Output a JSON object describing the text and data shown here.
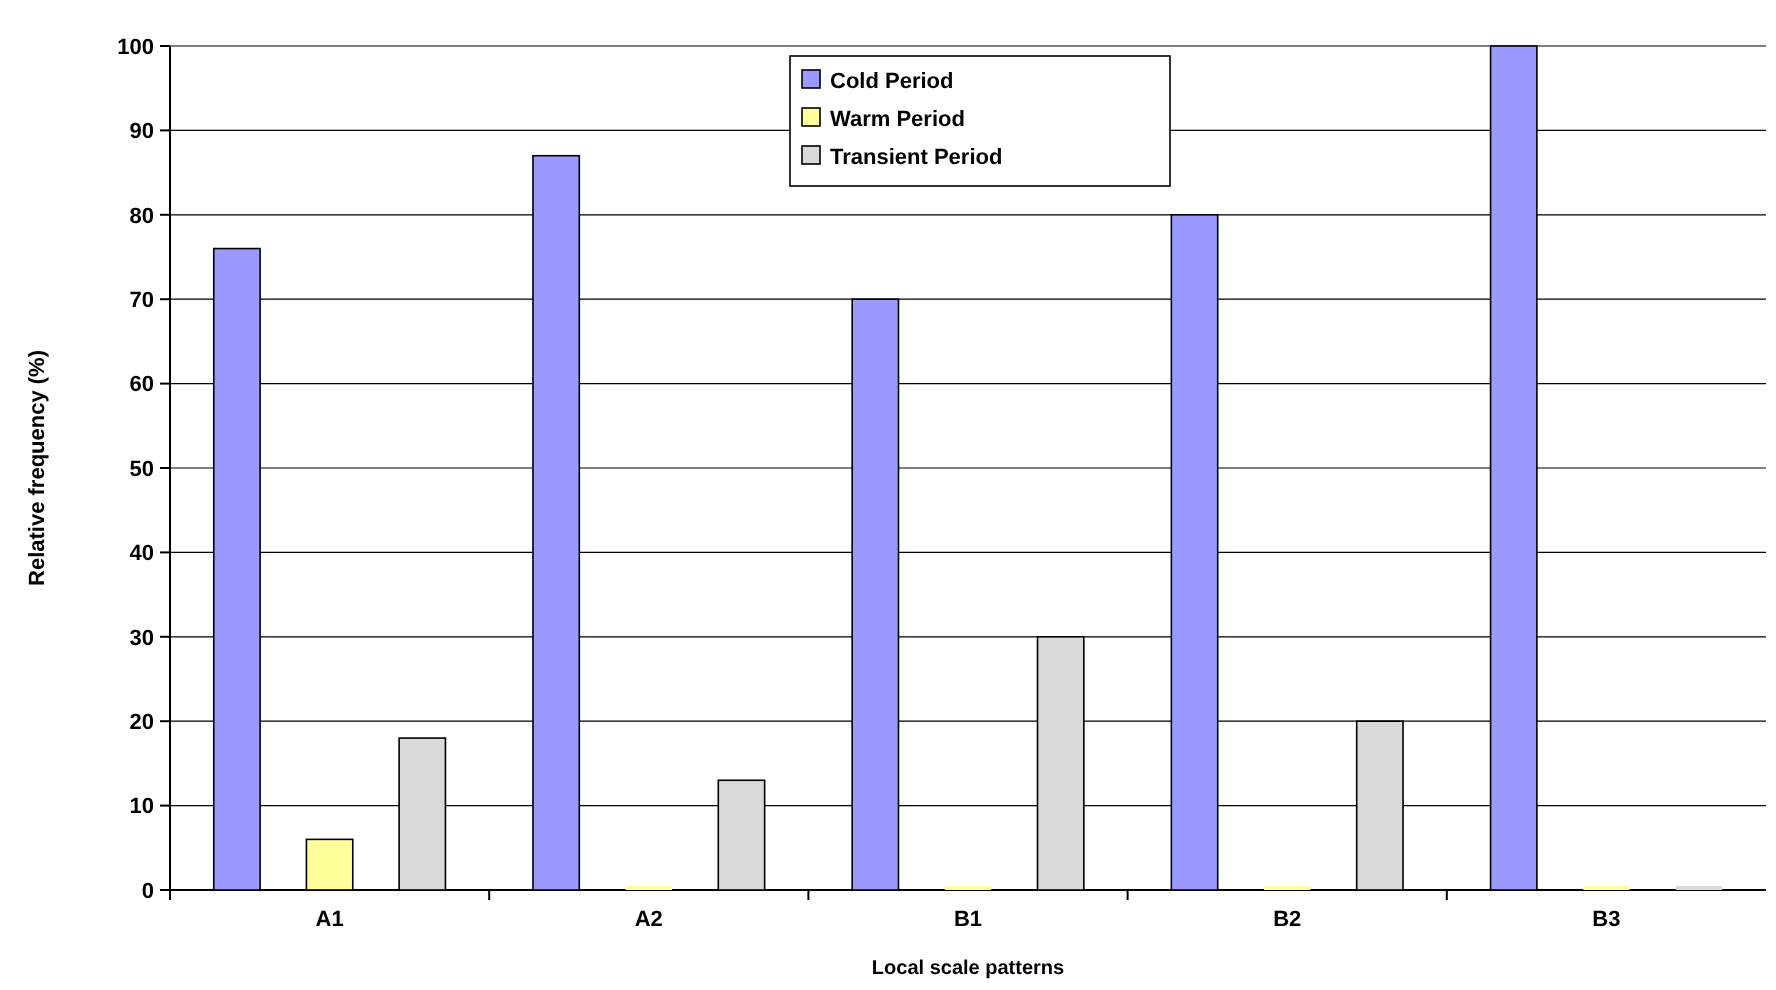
{
  "chart_data": {
    "type": "bar",
    "xlabel": "Local scale patterns",
    "ylabel": "Relative frequency (%)",
    "categories": [
      "A1",
      "A2",
      "B1",
      "B2",
      "B3"
    ],
    "series": [
      {
        "name": "Cold Period",
        "color": "#9999ff",
        "values": [
          76,
          87,
          70,
          80,
          100
        ]
      },
      {
        "name": "Warm Period",
        "color": "#ffff99",
        "values": [
          6,
          0,
          0,
          0,
          0
        ]
      },
      {
        "name": "Transient Period",
        "color": "#d9d9d9",
        "values": [
          18,
          13,
          30,
          20,
          0
        ]
      }
    ],
    "ylim": [
      0,
      100
    ],
    "yticks": [
      0,
      10,
      20,
      30,
      40,
      50,
      60,
      70,
      80,
      90,
      100
    ],
    "grid": "y",
    "legend": "top"
  }
}
